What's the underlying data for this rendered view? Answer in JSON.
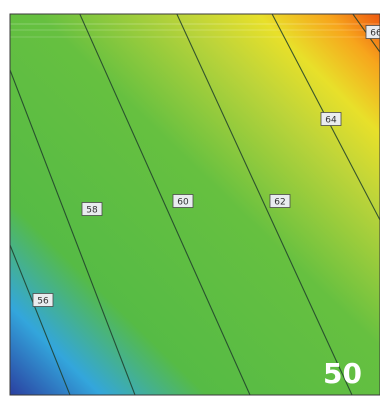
{
  "chart_data": {
    "type": "heatmap",
    "title": "",
    "xlabel": "",
    "ylabel": "",
    "colormap": [
      "#2a3fa0",
      "#33a6dc",
      "#56bb45",
      "#8fc93c",
      "#e8e02a",
      "#f7a51c",
      "#ee5a10"
    ],
    "grid": false,
    "legend": "none",
    "contour_levels": [
      {
        "value": 56,
        "label": "56"
      },
      {
        "value": 58,
        "label": "58"
      },
      {
        "value": 60,
        "label": "60"
      },
      {
        "value": 62,
        "label": "62"
      },
      {
        "value": 64,
        "label": "64"
      },
      {
        "value": 66,
        "label": "66"
      }
    ]
  },
  "badge": {
    "text": "50"
  }
}
